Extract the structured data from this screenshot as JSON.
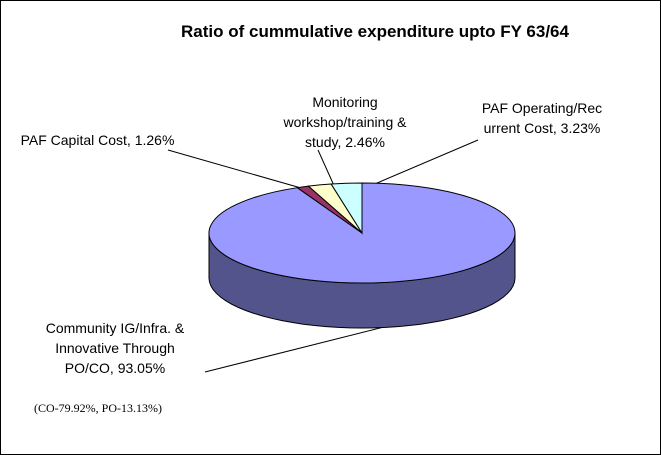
{
  "chart_data": {
    "type": "pie3d",
    "title": "Ratio of cummulative expenditure upto FY 63/64",
    "categories": [
      "Community IG/Infra. & Innovative Through PO/CO,",
      "PAF Capital Cost,",
      "Monitoring workshop/training & study,",
      "PAF Operating/Recurrent Cost,"
    ],
    "values": [
      93.05,
      1.26,
      2.46,
      3.23
    ],
    "value_labels": [
      "93.05%",
      "1.26%",
      "2.46%",
      "3.23%"
    ],
    "colors": [
      "#9999ff",
      "#993366",
      "#ffffcc",
      "#ccffff"
    ],
    "annotation": "(CO-79.92%, PO-13.13%)"
  }
}
